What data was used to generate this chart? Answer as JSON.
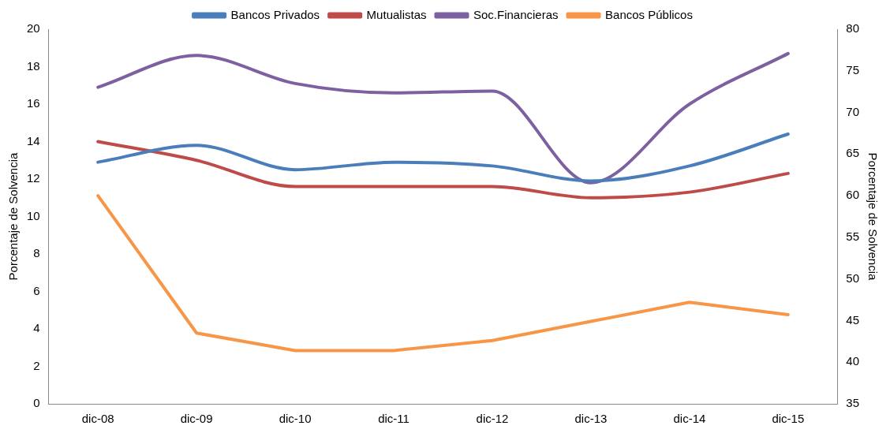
{
  "chart_data": {
    "type": "line",
    "ylabel": "Porcentaje de Solvencia",
    "y2label": "Porcentaje de Solvencia",
    "categories": [
      "dic-08",
      "dic-09",
      "dic-10",
      "dic-11",
      "dic-12",
      "dic-13",
      "dic-14",
      "dic-15"
    ],
    "series": [
      {
        "name": "Bancos Privados",
        "color": "#4a7ebb",
        "values": [
          12.9,
          13.8,
          12.5,
          12.9,
          12.7,
          11.9,
          12.7,
          14.4
        ]
      },
      {
        "name": "Mutualistas",
        "color": "#be4b48",
        "values": [
          14.0,
          13.0,
          11.6,
          11.6,
          11.6,
          11.0,
          11.3,
          12.3
        ]
      },
      {
        "name": "Soc.Financieras",
        "color": "#7d60a0",
        "values": [
          16.9,
          18.6,
          17.1,
          16.6,
          16.7,
          11.8,
          16.0,
          18.7
        ]
      },
      {
        "name": "Bancos Públicos",
        "color": "#f79646",
        "axis": "y2",
        "values": [
          60.0,
          43.5,
          41.4,
          41.4,
          42.6,
          44.9,
          47.2,
          45.7
        ]
      }
    ],
    "ylim": [
      0,
      20
    ],
    "yticks": [
      0,
      2,
      4,
      6,
      8,
      10,
      12,
      14,
      16,
      18,
      20
    ],
    "y2lim": [
      35,
      80
    ],
    "y2ticks": [
      35,
      40,
      45,
      50,
      55,
      60,
      65,
      70,
      75,
      80
    ],
    "grid": false,
    "legend": "top",
    "marker": "none",
    "line_style": "solid"
  }
}
